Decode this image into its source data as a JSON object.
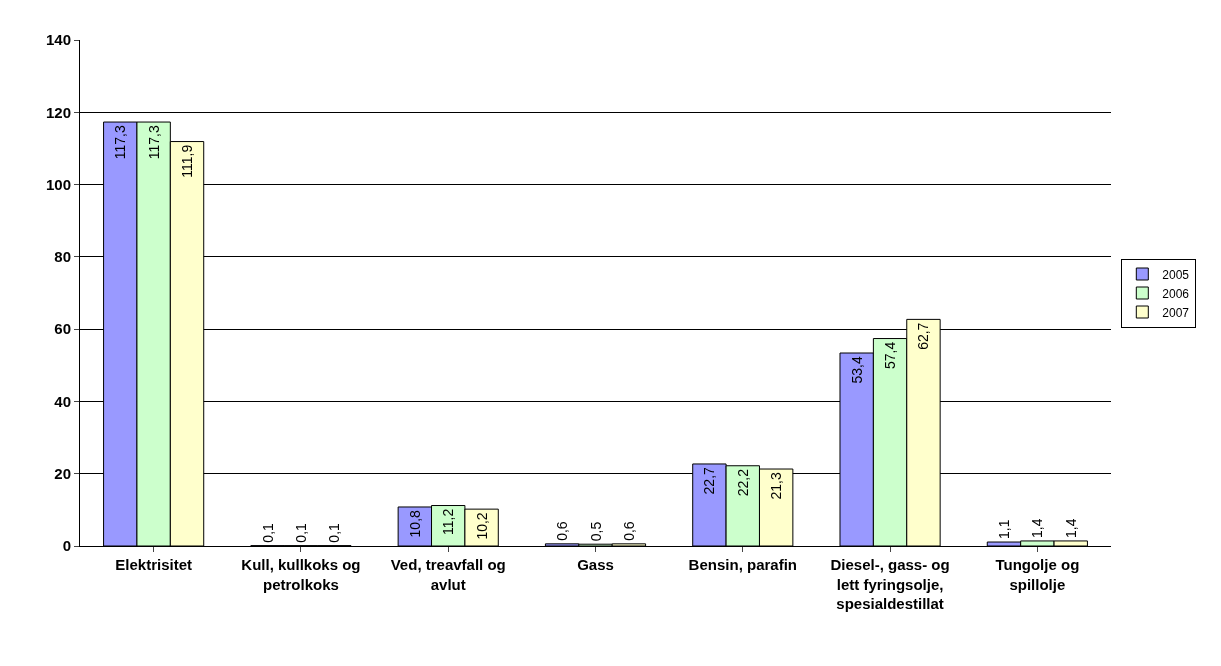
{
  "chart_data": {
    "type": "bar",
    "categories": [
      "Elektrisitet",
      "Kull, kullkoks og petrolkoks",
      "Ved, treavfall og avlut",
      "Gass",
      "Bensin, parafin",
      "Diesel-, gass- og lett fyringsolje, spesialdestillat",
      "Tungolje og spillolje"
    ],
    "series": [
      {
        "name": "2005",
        "color": "#9999ff",
        "values": [
          117.3,
          0.1,
          10.8,
          0.6,
          22.7,
          53.4,
          1.1
        ],
        "value_labels": [
          "117,3",
          "0,1",
          "10,8",
          "0,6",
          "22,7",
          "53,4",
          "1,1"
        ]
      },
      {
        "name": "2006",
        "color": "#ccffcc",
        "values": [
          117.3,
          0.1,
          11.2,
          0.5,
          22.2,
          57.4,
          1.4
        ],
        "value_labels": [
          "117,3",
          "0,1",
          "11,2",
          "0,5",
          "22,2",
          "57,4",
          "1,4"
        ]
      },
      {
        "name": "2007",
        "color": "#ffffcc",
        "values": [
          111.9,
          0.1,
          10.2,
          0.6,
          21.3,
          62.7,
          1.4
        ],
        "value_labels": [
          "111,9",
          "0,1",
          "10,2",
          "0,6",
          "21,3",
          "62,7",
          "1,4"
        ]
      }
    ],
    "ylim": [
      0,
      140
    ],
    "yticks": [
      0,
      20,
      40,
      60,
      80,
      100,
      120,
      140
    ],
    "grid": "y",
    "legend": "right"
  }
}
